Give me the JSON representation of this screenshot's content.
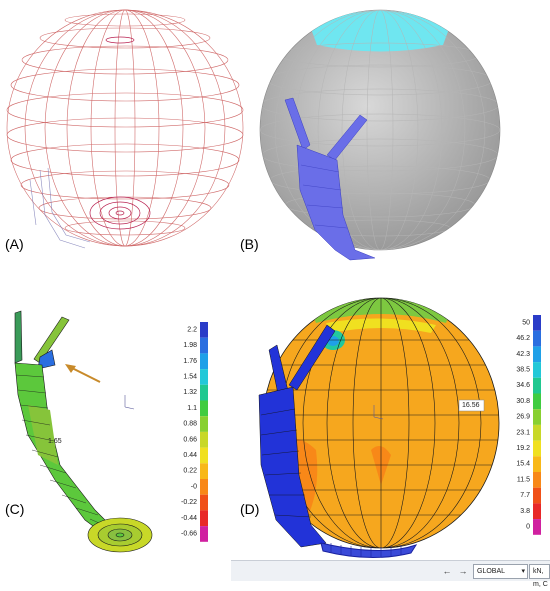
{
  "panels": {
    "a": {
      "label": "(A)"
    },
    "b": {
      "label": "(B)"
    },
    "c": {
      "label": "(C)",
      "probe_value": "1.65"
    },
    "d": {
      "label": "(D)",
      "probe_value": "16.56"
    }
  },
  "legend_c": {
    "values": [
      "2.2",
      "1.98",
      "1.76",
      "1.54",
      "1.32",
      "1.1",
      "0.88",
      "0.66",
      "0.44",
      "0.22",
      "-0",
      "-0.22",
      "-0.44",
      "-0.66"
    ],
    "colors": [
      "#2a3cc8",
      "#2a6ee0",
      "#1fa0e8",
      "#22c8d8",
      "#20c890",
      "#40cc40",
      "#88d030",
      "#c8d828",
      "#f0e020",
      "#f8b818",
      "#f88818",
      "#f05018",
      "#e82828",
      "#d020a0"
    ]
  },
  "legend_d": {
    "values": [
      "50",
      "46.2",
      "42.3",
      "38.5",
      "34.6",
      "30.8",
      "26.9",
      "23.1",
      "19.2",
      "15.4",
      "11.5",
      "7.7",
      "3.8",
      "0"
    ],
    "colors": [
      "#2a3cc8",
      "#2a6ee0",
      "#1fa0e8",
      "#22c8d8",
      "#20c890",
      "#40cc40",
      "#88d030",
      "#c8d828",
      "#f0e020",
      "#f8b818",
      "#f88818",
      "#f05018",
      "#e82828",
      "#d020a0"
    ]
  },
  "statusbar": {
    "back_icon": "arrow-left-icon",
    "forward_icon": "arrow-right-icon",
    "coord_system": "GLOBAL",
    "units": "kN, m, C"
  }
}
